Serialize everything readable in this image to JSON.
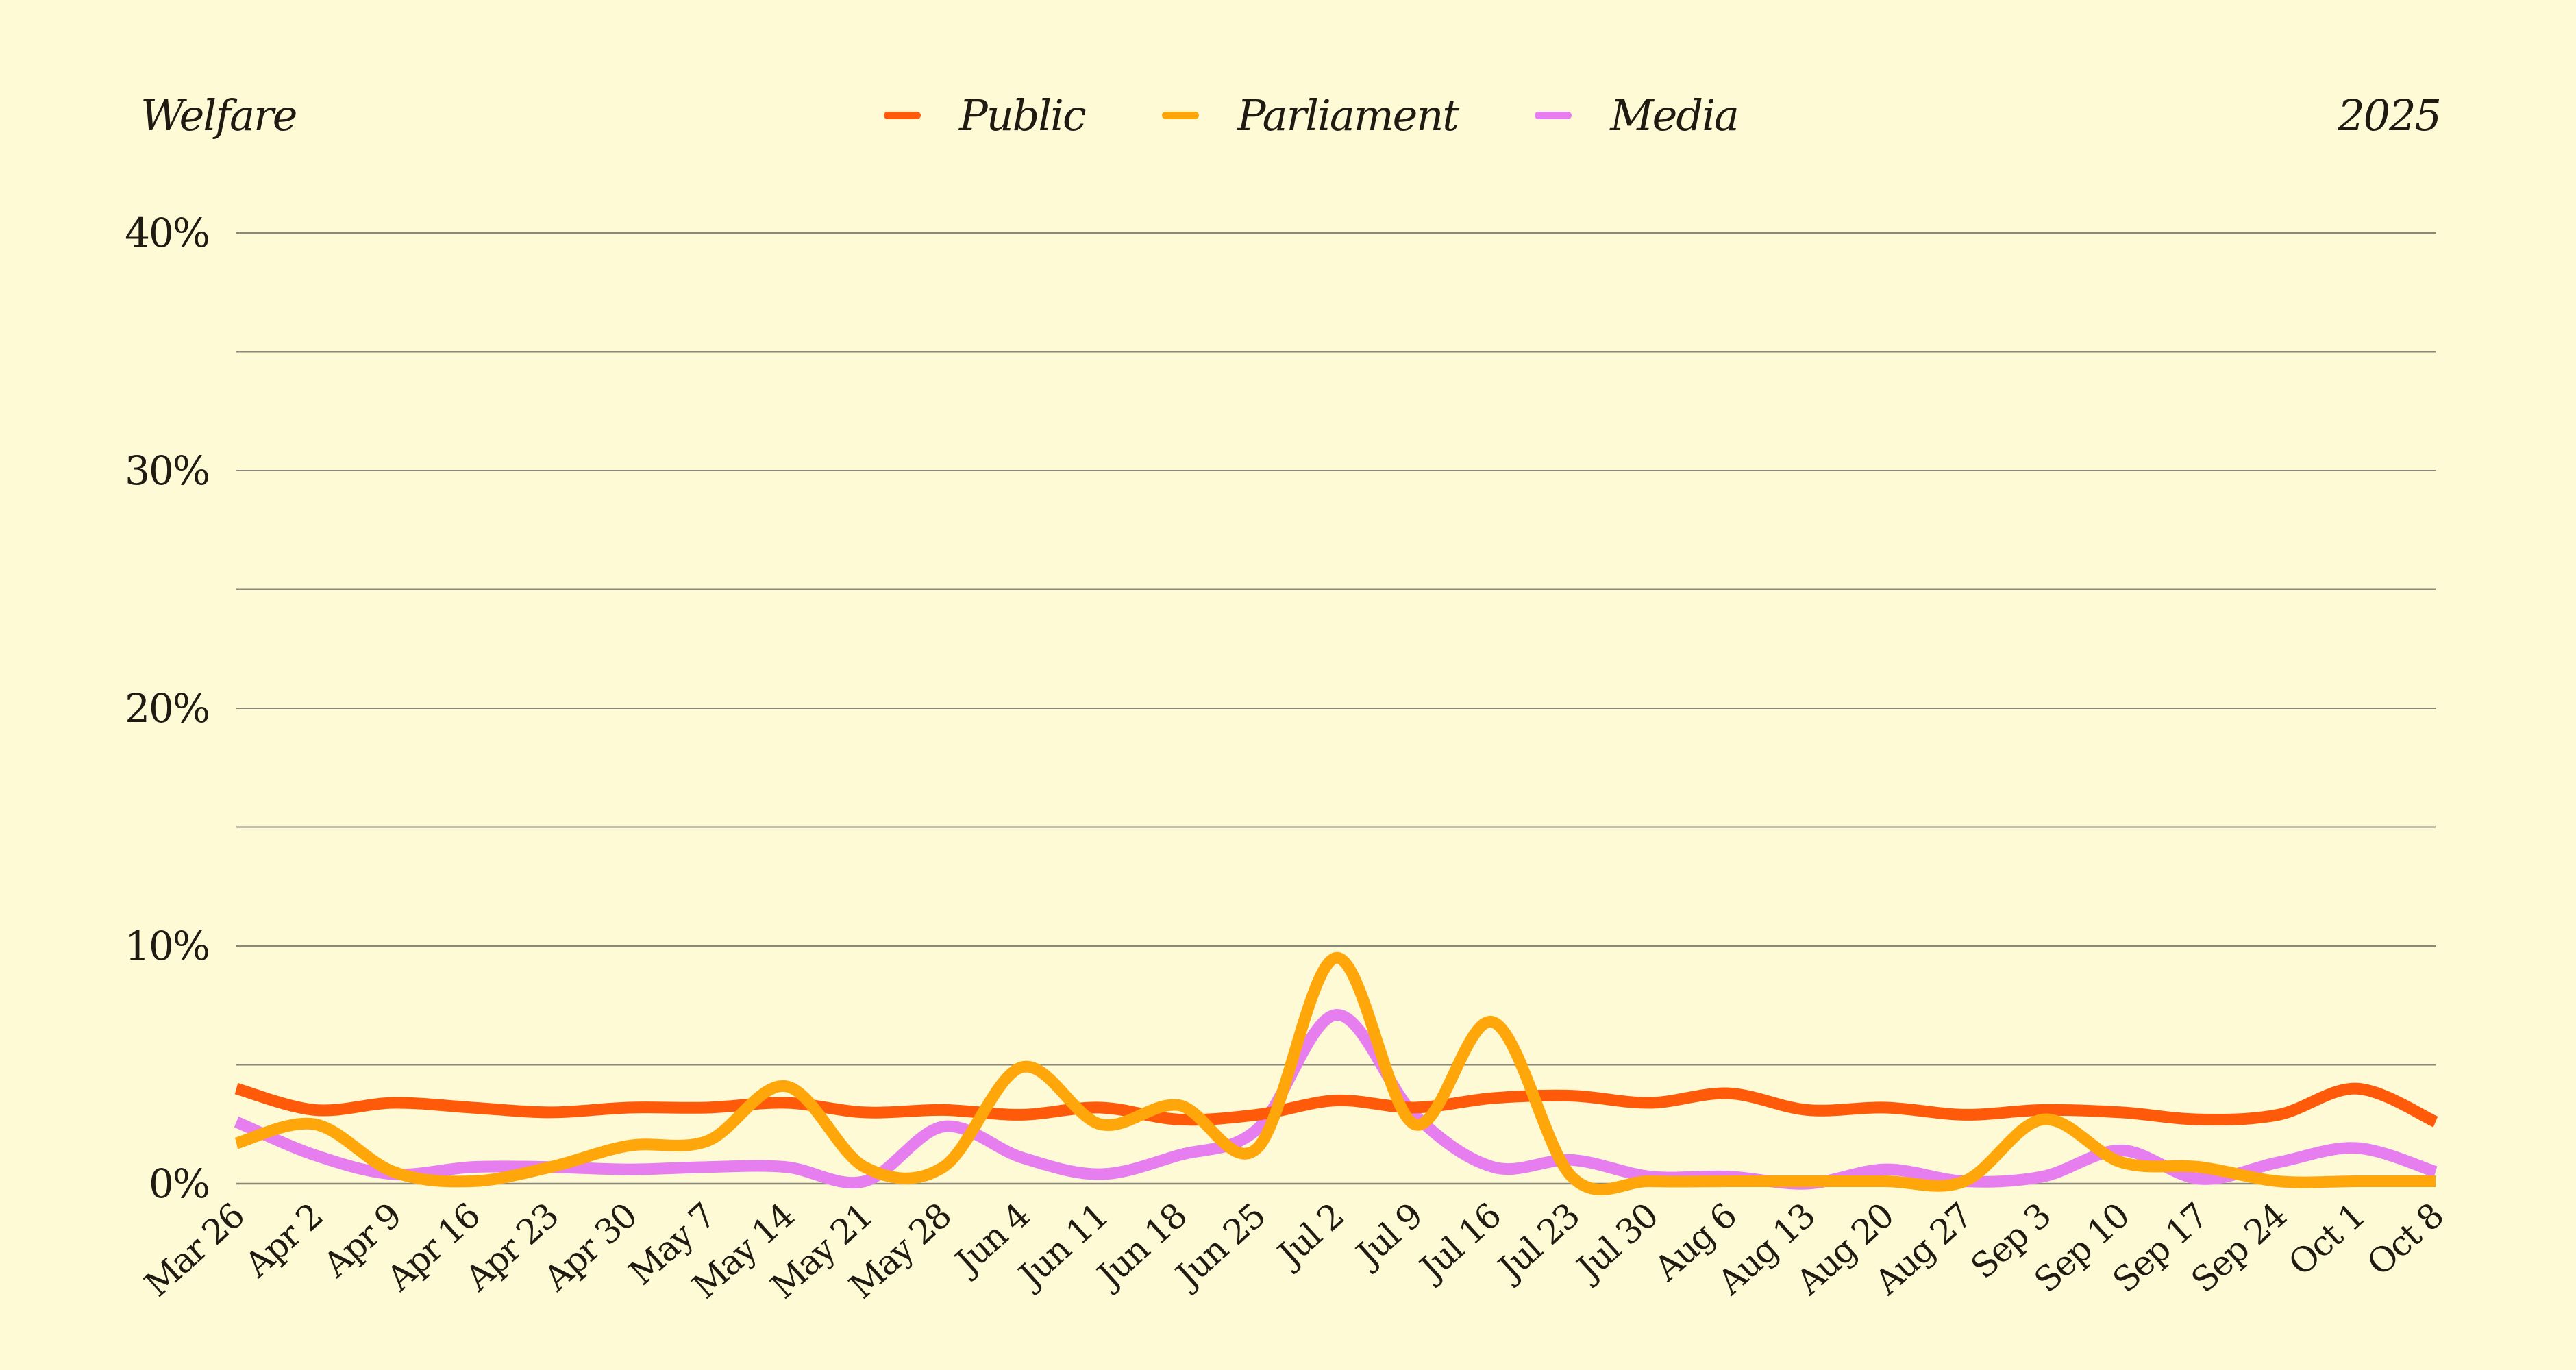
{
  "header": {
    "title": "Welfare",
    "year": "2025"
  },
  "legend": [
    {
      "name": "Public",
      "color": "#ff5a0a"
    },
    {
      "name": "Parliament",
      "color": "#ffa70a"
    },
    {
      "name": "Media",
      "color": "#e67ef0"
    }
  ],
  "chart_data": {
    "type": "line",
    "title": "Welfare",
    "xlabel": "",
    "ylabel": "",
    "ylim": [
      0,
      40
    ],
    "y_ticks": [
      "0%",
      "10%",
      "20%",
      "30%",
      "40%"
    ],
    "grid": true,
    "legend_position": "top",
    "x": [
      "Mar 26",
      "Apr 2",
      "Apr 9",
      "Apr 16",
      "Apr 23",
      "Apr 30",
      "May 7",
      "May 14",
      "May 21",
      "May 28",
      "Jun 4",
      "Jun 11",
      "Jun 18",
      "Jun 25",
      "Jul 2",
      "Jul 9",
      "Jul 16",
      "Jul 23",
      "Jul 30",
      "Aug 6",
      "Aug 13",
      "Aug 20",
      "Aug 27",
      "Sep 3",
      "Sep 10",
      "Sep 17",
      "Sep 24",
      "Oct 1",
      "Oct 8"
    ],
    "series": [
      {
        "name": "Public",
        "color": "#ff5a0a",
        "values": [
          4.0,
          3.1,
          3.4,
          3.2,
          3.0,
          3.2,
          3.2,
          3.4,
          3.0,
          3.1,
          2.9,
          3.2,
          2.7,
          2.9,
          3.5,
          3.2,
          3.6,
          3.7,
          3.4,
          3.8,
          3.1,
          3.2,
          2.9,
          3.1,
          3.0,
          2.7,
          2.9,
          4.0,
          2.6
        ]
      },
      {
        "name": "Parliament",
        "color": "#ffa70a",
        "values": [
          1.7,
          2.5,
          0.5,
          0.1,
          0.7,
          1.6,
          1.8,
          4.1,
          0.7,
          0.7,
          4.9,
          2.5,
          3.3,
          1.5,
          9.5,
          2.5,
          6.8,
          0.3,
          0.1,
          0.1,
          0.1,
          0.1,
          0.1,
          2.7,
          0.9,
          0.7,
          0.1,
          0.1,
          0.1
        ]
      },
      {
        "name": "Media",
        "color": "#e67ef0",
        "values": [
          2.6,
          1.2,
          0.4,
          0.7,
          0.7,
          0.6,
          0.7,
          0.7,
          0.1,
          2.4,
          1.1,
          0.4,
          1.2,
          2.3,
          7.1,
          2.9,
          0.7,
          1.0,
          0.3,
          0.3,
          0.0,
          0.6,
          0.1,
          0.3,
          1.4,
          0.2,
          0.9,
          1.5,
          0.5
        ]
      }
    ]
  }
}
